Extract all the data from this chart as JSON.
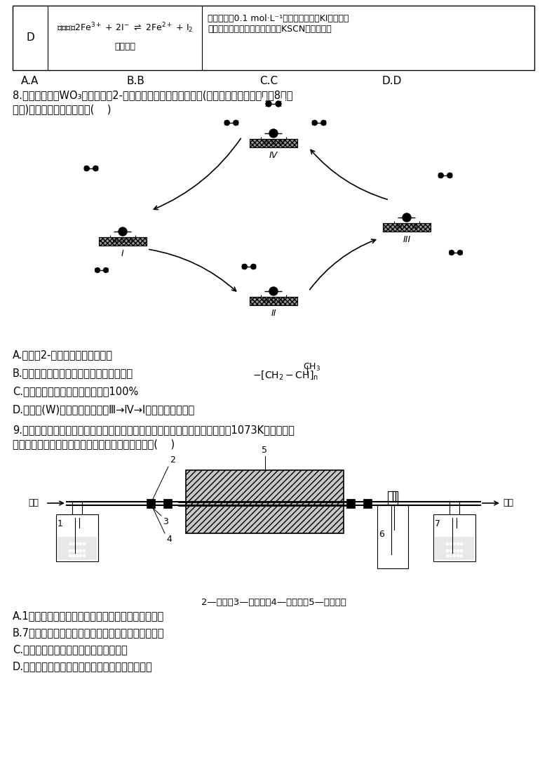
{
  "bg_color": "#ffffff",
  "text_color": "#000000",
  "table_row_D": {
    "col1": "D",
    "col2": "证明反应2Fe³⁺ + 2I⁻ ⇌ 2Fe²⁺ + I₂\n存在限度",
    "col3": "将浓度均为0.1 mol·L⁻¹的硫酸铁溶液和KI溶液等体积混合，充分反应后再滴加数滴KSCN溶液，振荡"
  },
  "answer_row": "A.A          B.B          C.C          D.D",
  "q8_text": "8.科学家提出由WO₃催化乙烯和2-丁烯合成丙烯的反应历程如图(所有碳原子最外层均满足8电子结构)。下列说法不正确的是(    )",
  "q8_options": [
    "A.乙烯、2-丁烯和丙烯互为同系物",
    "B.丙烯在一定条件下发生加聚反应的产物为",
    "C.合成丙烯总反应的原子利用率为100%",
    "D.碳、钨(W)原子间的化学键在Ⅲ→Ⅳ→Ⅰ过程中未发生断裂"
  ],
  "q9_text": "9.制备氮化镁的装置如图所示。实验时在不锈钢舟内加入镁粉，通氮气，升温至1073K，加热半小时，冷却至室温，停止通氮气。下列说法不正确的是(    )",
  "q9_options": [
    "A.1中的试剂是浓硫酸，便于观察气泡，调节气流速度",
    "B.7中的试剂是浓硫酸，防止空气中的水蒸气进入装置",
    "C.氮化镁的水解反应是中和反应的逆反应",
    "D.实验时，应先通入一段时间的氮气，后加热瓷管"
  ],
  "apparatus_caption": "2—瓷管；3—石棉绳；4—管式炉；5—不锈钢舟"
}
